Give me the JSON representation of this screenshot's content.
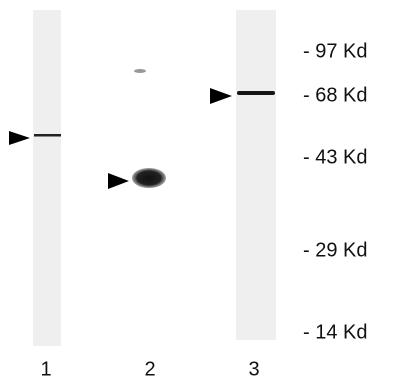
{
  "markers": [
    {
      "label": "- 97 Kd"
    },
    {
      "label": "- 68 Kd"
    },
    {
      "label": "- 43 Kd"
    },
    {
      "label": "- 29 Kd"
    },
    {
      "label": "- 14 Kd"
    }
  ],
  "lanes": [
    {
      "label": "1"
    },
    {
      "label": "2"
    },
    {
      "label": "3"
    }
  ]
}
